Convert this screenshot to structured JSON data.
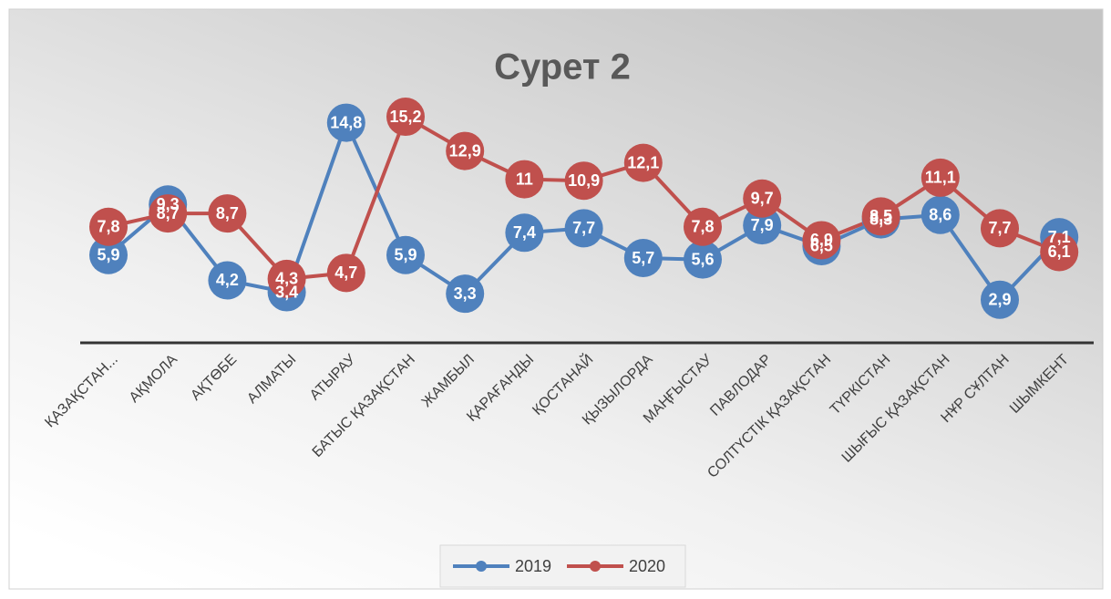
{
  "chart_data": {
    "type": "line",
    "title": "Сурет 2",
    "categories": [
      "ҚАЗАҚСТАН...",
      "АҚМОЛА",
      "АҚТӨБЕ",
      "АЛМАТЫ",
      "АТЫРАУ",
      "БАТЫС ҚАЗАҚСТАН",
      "ЖАМБЫЛ",
      "ҚАРАҒАНДЫ",
      "ҚОСТАНАЙ",
      "ҚЫЗЫЛОРДА",
      "МАҢҒЫСТАУ",
      "ПАВЛОДАР",
      "СОЛТҮСТІК ҚАЗАҚСТАН",
      "ТҮРКІСТАН",
      "ШЫҒЫС ҚАЗАҚСТАН",
      "НҰР СҰЛТАН",
      "ШЫМКЕНТ"
    ],
    "series": [
      {
        "name": "2019",
        "color": "#4f81bd",
        "values": [
          5.9,
          9.3,
          4.2,
          3.4,
          14.8,
          5.9,
          3.3,
          7.4,
          7.7,
          5.7,
          5.6,
          7.9,
          6.5,
          8.3,
          8.6,
          2.9,
          7.1
        ],
        "value_labels": [
          "5,9",
          "9,3",
          "4,2",
          "3,4",
          "14,8",
          "5,9",
          "3,3",
          "7,4",
          "7,7",
          "5,7",
          "5,6",
          "7,9",
          "6,5",
          "8,3",
          "8,6",
          "2,9",
          "7,1"
        ]
      },
      {
        "name": "2020",
        "color": "#c0504d",
        "values": [
          7.8,
          8.7,
          8.7,
          4.3,
          4.7,
          15.2,
          12.9,
          11,
          10.9,
          12.1,
          7.8,
          9.7,
          6.9,
          8.5,
          11.1,
          7.7,
          6.1
        ],
        "value_labels": [
          "7,8",
          "8,7",
          "8,7",
          "4,3",
          "4,7",
          "15,2",
          "12,9",
          "11",
          "10,9",
          "12,1",
          "7,8",
          "9,7",
          "6,9",
          "8,5",
          "11,1",
          "7,7",
          "6,1"
        ]
      }
    ],
    "ylim": [
      0,
      16
    ],
    "legend": "bottom"
  }
}
